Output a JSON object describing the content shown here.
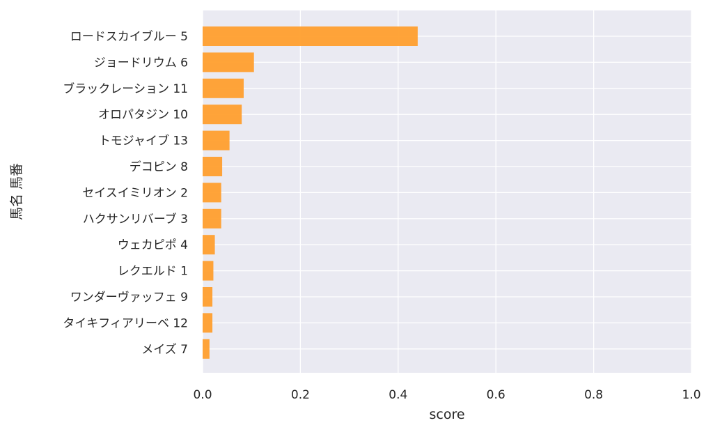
{
  "chart_data": {
    "type": "bar",
    "orientation": "horizontal",
    "title": "",
    "xlabel": "score",
    "ylabel": "馬名 馬番",
    "xlim": [
      0,
      1.0
    ],
    "xticks": [
      "0.0",
      "0.2",
      "0.4",
      "0.6",
      "0.8",
      "1.0"
    ],
    "grid": true,
    "bar_color": "#ff9f2e",
    "background_color": "#eaeaf2",
    "categories": [
      "ロードスカイブルー 5",
      "ジョードリウム 6",
      "ブラックレーション 11",
      "オロパタジン 10",
      "トモジャイブ 13",
      "デコピン 8",
      "セイスイミリオン 2",
      "ハクサンリバーブ 3",
      "ウェカピポ 4",
      "レクエルド 1",
      "ワンダーヴァッフェ 9",
      "タイキフィアリーベ 12",
      "メイズ 7"
    ],
    "values": [
      0.44,
      0.105,
      0.084,
      0.08,
      0.055,
      0.04,
      0.038,
      0.038,
      0.025,
      0.022,
      0.02,
      0.02,
      0.014
    ]
  }
}
